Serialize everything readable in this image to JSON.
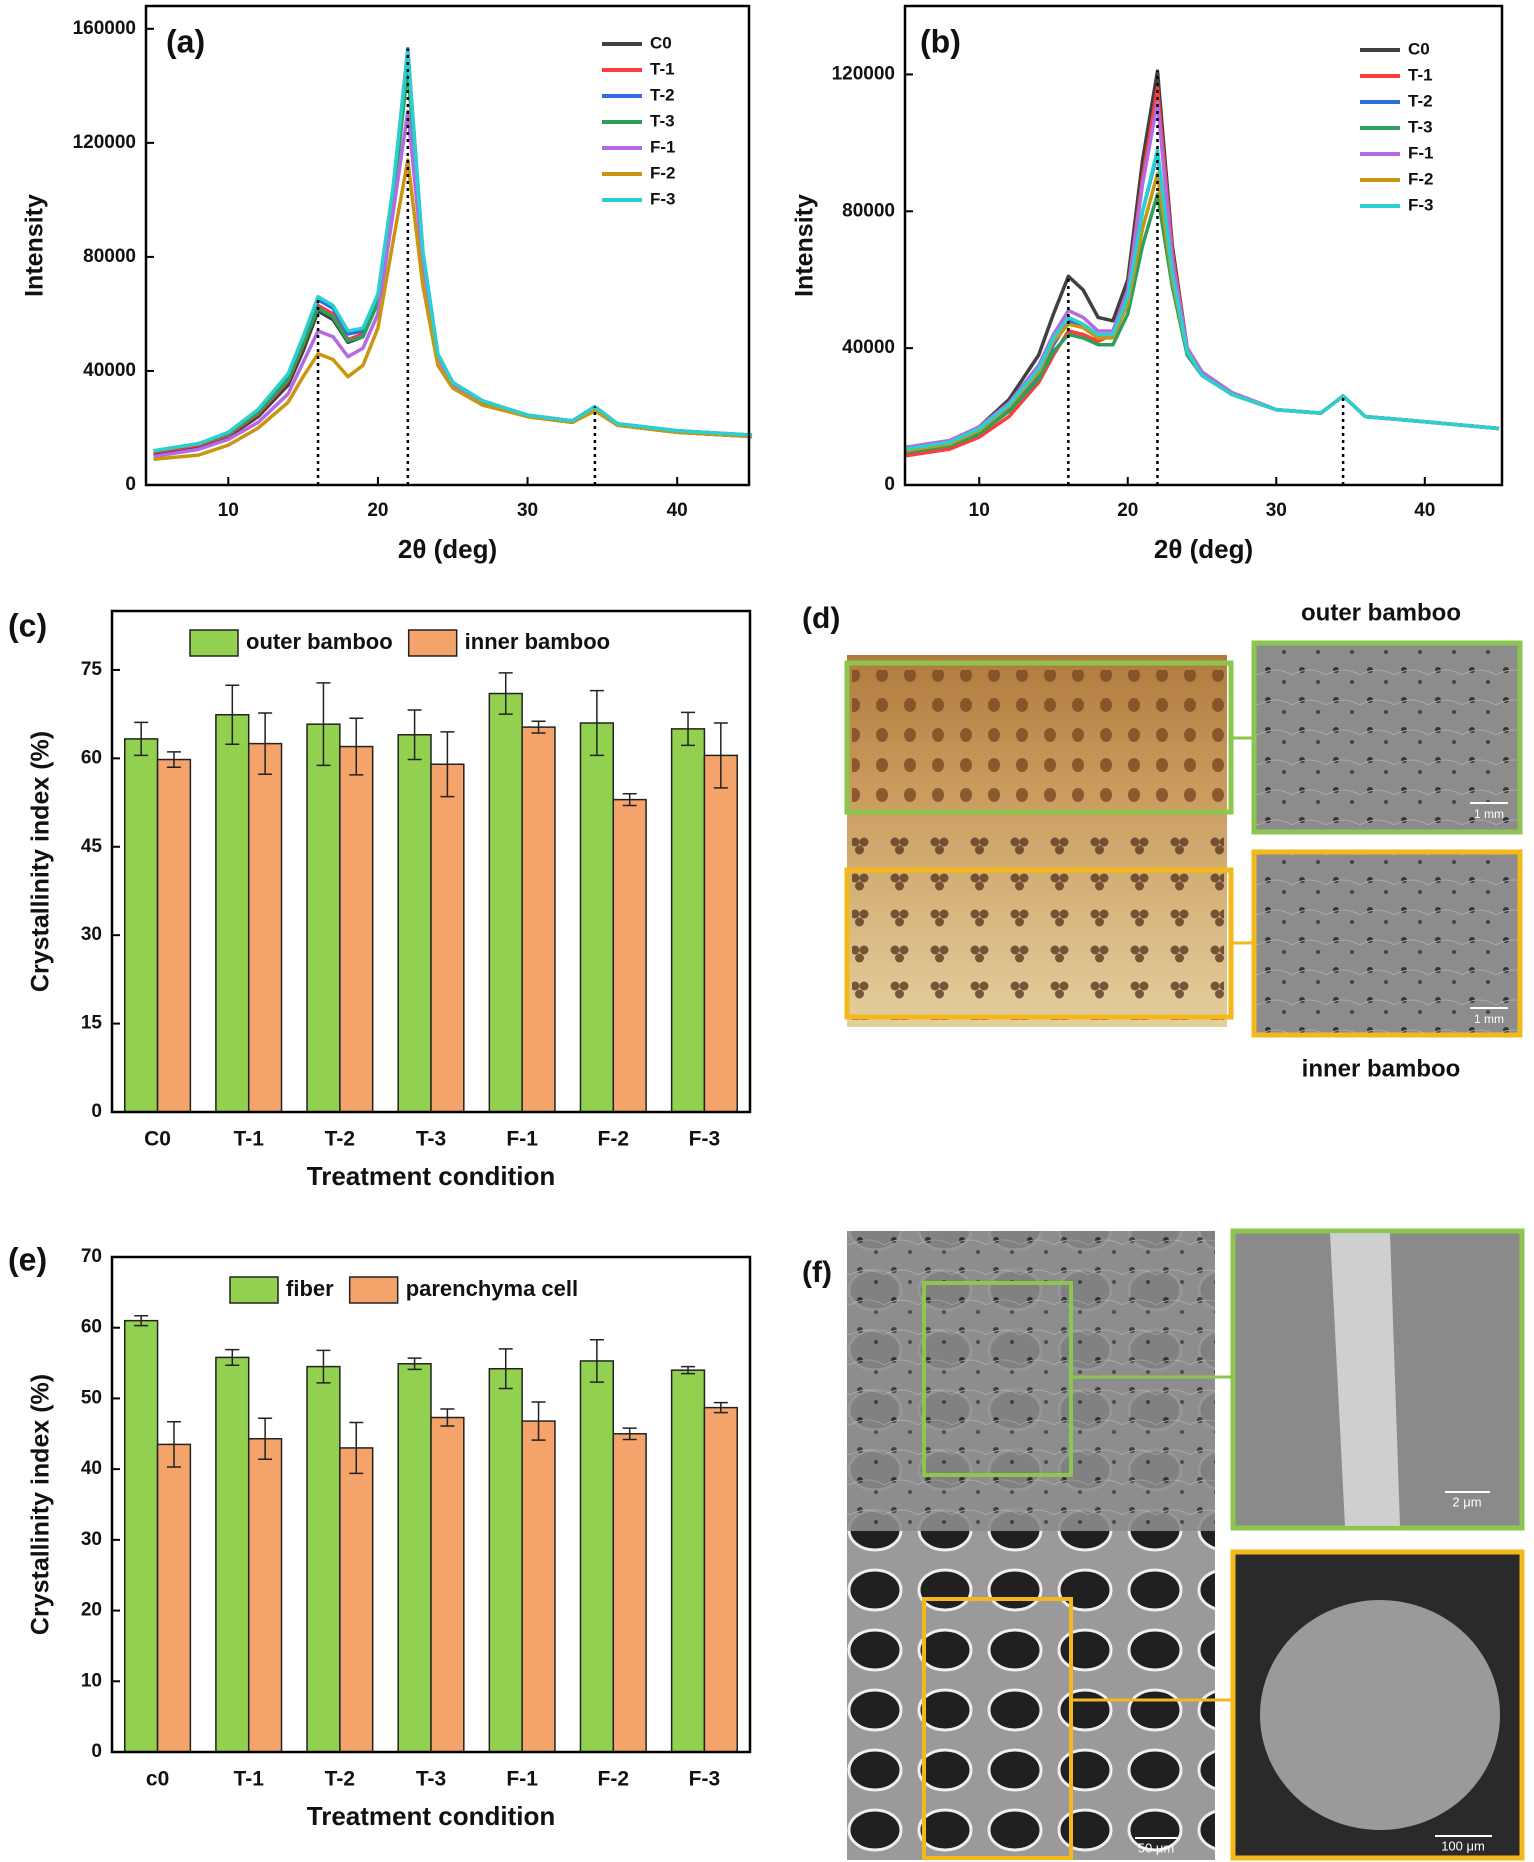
{
  "chart_data": [
    {
      "type": "line",
      "label": "(a)",
      "x_label": "2θ (deg)",
      "y_label": "Intensity",
      "legend": "upper right",
      "x": [
        5,
        8,
        10,
        12,
        14,
        15,
        16,
        17,
        18,
        19,
        20,
        21,
        22,
        23,
        24,
        25,
        27,
        30,
        33,
        34.5,
        36,
        40,
        45
      ],
      "xlim": [
        4.5,
        44.8
      ],
      "xticks": [
        10,
        20,
        30,
        40
      ],
      "ylim": [
        0,
        168000
      ],
      "yticks": [
        0,
        40000,
        80000,
        120000,
        160000
      ],
      "ref_lines": [
        16,
        22,
        34.5
      ],
      "series": [
        {
          "name": "C0",
          "color": "#404040",
          "values": [
            11000,
            13500,
            17000,
            24000,
            35000,
            47000,
            61000,
            58000,
            50000,
            52000,
            64000,
            100000,
            150000,
            80000,
            45000,
            35000,
            29000,
            24000,
            22000,
            27000,
            21000,
            18500,
            17000
          ]
        },
        {
          "name": "T-1",
          "color": "#ff3b3b",
          "values": [
            11500,
            14000,
            17500,
            25000,
            36500,
            49000,
            63000,
            60000,
            51000,
            53000,
            65000,
            101000,
            148000,
            80000,
            45000,
            35000,
            29000,
            24000,
            22000,
            27000,
            21000,
            18500,
            17000
          ]
        },
        {
          "name": "T-2",
          "color": "#2a6fdb",
          "values": [
            12000,
            14500,
            18000,
            26000,
            38000,
            51000,
            65000,
            62000,
            53000,
            54000,
            66000,
            103000,
            153000,
            82000,
            46000,
            36000,
            29500,
            24500,
            22500,
            27500,
            21500,
            19000,
            17500
          ]
        },
        {
          "name": "T-3",
          "color": "#2ca05a",
          "values": [
            12000,
            14500,
            18000,
            25500,
            37000,
            49500,
            62000,
            59000,
            50500,
            52000,
            64000,
            99000,
            146000,
            79000,
            45000,
            35000,
            29000,
            24000,
            22000,
            27000,
            21000,
            18500,
            17000
          ]
        },
        {
          "name": "F-1",
          "color": "#b36ae2",
          "values": [
            10000,
            12500,
            16000,
            22000,
            32000,
            43000,
            54000,
            52000,
            45000,
            48000,
            60000,
            95000,
            131000,
            78000,
            45000,
            35000,
            29500,
            24500,
            22500,
            27500,
            21500,
            19000,
            17500
          ]
        },
        {
          "name": "F-2",
          "color": "#c9960f",
          "values": [
            9000,
            10500,
            14000,
            20000,
            29000,
            38000,
            46000,
            44000,
            38000,
            42000,
            55000,
            85000,
            114000,
            70000,
            42000,
            34000,
            28000,
            24000,
            22000,
            26000,
            21000,
            18500,
            17000
          ]
        },
        {
          "name": "F-3",
          "color": "#2ad0d0",
          "values": [
            12000,
            14500,
            18500,
            26500,
            39000,
            52000,
            66000,
            63000,
            54000,
            55000,
            67000,
            104000,
            152000,
            82000,
            46000,
            36000,
            29500,
            24500,
            22500,
            27500,
            21500,
            19000,
            17500
          ]
        }
      ]
    },
    {
      "type": "line",
      "label": "(b)",
      "x_label": "2θ (deg)",
      "y_label": "Intensity",
      "legend": "upper right",
      "x": [
        5,
        8,
        10,
        12,
        14,
        15,
        16,
        17,
        18,
        19,
        20,
        21,
        22,
        23,
        24,
        25,
        27,
        30,
        33,
        34.5,
        36,
        40,
        45
      ],
      "xlim": [
        5,
        45.2
      ],
      "xticks": [
        10,
        20,
        30,
        40
      ],
      "ylim": [
        0,
        140000
      ],
      "yticks": [
        0,
        40000,
        80000,
        120000
      ],
      "ref_lines": [
        16,
        22,
        34.5
      ],
      "series": [
        {
          "name": "C0",
          "color": "#404040",
          "values": [
            10000,
            12500,
            17000,
            25000,
            38000,
            50000,
            61000,
            57000,
            49000,
            48000,
            60000,
            95000,
            121000,
            70000,
            40000,
            33000,
            27000,
            22000,
            21000,
            26000,
            20000,
            18500,
            16500
          ]
        },
        {
          "name": "T-1",
          "color": "#ff3b3b",
          "values": [
            8500,
            10500,
            14000,
            20000,
            30000,
            38000,
            45000,
            44000,
            42000,
            44000,
            57000,
            90000,
            116000,
            68000,
            40000,
            33000,
            27000,
            22000,
            21000,
            26000,
            20000,
            18500,
            16500
          ]
        },
        {
          "name": "T-2",
          "color": "#2a6fdb",
          "values": [
            9500,
            11500,
            15000,
            22000,
            32000,
            41000,
            48000,
            46000,
            43000,
            44000,
            55000,
            80000,
            97000,
            62000,
            39000,
            32000,
            26500,
            22000,
            21000,
            26000,
            20000,
            18500,
            16500
          ]
        },
        {
          "name": "T-3",
          "color": "#2ca05a",
          "values": [
            9500,
            11500,
            15000,
            21500,
            31000,
            39000,
            44000,
            43000,
            41000,
            41000,
            50000,
            70000,
            85000,
            58000,
            38000,
            32000,
            26500,
            22000,
            21000,
            26000,
            20000,
            18500,
            16500
          ]
        },
        {
          "name": "F-1",
          "color": "#b36ae2",
          "values": [
            11000,
            13000,
            17000,
            24000,
            35000,
            44000,
            51000,
            49000,
            45000,
            45000,
            57000,
            88000,
            112000,
            66000,
            40000,
            33000,
            27000,
            22000,
            21000,
            26000,
            20000,
            18500,
            16500
          ]
        },
        {
          "name": "F-2",
          "color": "#c9960f",
          "values": [
            10000,
            12000,
            16000,
            23000,
            33000,
            42000,
            47000,
            46000,
            43000,
            43000,
            53000,
            75000,
            91000,
            60000,
            39000,
            32000,
            26500,
            22000,
            21000,
            26000,
            20000,
            18500,
            16500
          ]
        },
        {
          "name": "F-3",
          "color": "#2ad0d0",
          "values": [
            10500,
            12500,
            16500,
            23500,
            34000,
            43000,
            49000,
            47000,
            44000,
            44000,
            55000,
            80000,
            98000,
            62000,
            39000,
            32000,
            26500,
            22000,
            21000,
            26000,
            20000,
            18500,
            16500
          ]
        }
      ]
    },
    {
      "type": "bar",
      "label": "(c)",
      "x_label": "Treatment condition",
      "y_label": "Crystallinity index (%)",
      "legend": "upper center",
      "categories": [
        "C0",
        "T-1",
        "T-2",
        "T-3",
        "F-1",
        "F-2",
        "F-3"
      ],
      "ylim": [
        0,
        85
      ],
      "yticks": [
        0,
        15,
        30,
        45,
        60,
        75
      ],
      "series": [
        {
          "name": "outer bamboo",
          "color": "#92d050",
          "values": [
            63.3,
            67.4,
            65.8,
            64.0,
            71.0,
            66.0,
            65.0
          ],
          "errors": [
            2.8,
            5.0,
            7.0,
            4.2,
            3.5,
            5.5,
            2.8
          ]
        },
        {
          "name": "inner bamboo",
          "color": "#f4a46a",
          "values": [
            59.8,
            62.5,
            62.0,
            59.0,
            65.3,
            53.0,
            60.5
          ],
          "errors": [
            1.3,
            5.2,
            4.8,
            5.5,
            1.0,
            1.0,
            5.5
          ]
        }
      ]
    },
    {
      "type": "bar",
      "label": "(e)",
      "x_label": "Treatment condition",
      "y_label": "Crystallinity index (%)",
      "legend": "upper center",
      "categories": [
        "c0",
        "T-1",
        "T-2",
        "T-3",
        "F-1",
        "F-2",
        "F-3"
      ],
      "ylim": [
        0,
        70
      ],
      "yticks": [
        0,
        10,
        20,
        30,
        40,
        50,
        60,
        70
      ],
      "series": [
        {
          "name": "fiber",
          "color": "#92d050",
          "values": [
            61.0,
            55.8,
            54.5,
            54.9,
            54.2,
            55.3,
            54.0
          ],
          "errors": [
            0.7,
            1.1,
            2.3,
            0.8,
            2.8,
            3.0,
            0.5
          ]
        },
        {
          "name": "parenchyma cell",
          "color": "#f4a46a",
          "values": [
            43.5,
            44.3,
            43.0,
            47.3,
            46.8,
            45.0,
            48.7
          ],
          "errors": [
            3.2,
            2.9,
            3.6,
            1.2,
            2.7,
            0.8,
            0.7
          ]
        }
      ]
    }
  ],
  "panels": [
    {
      "label": "(d)",
      "captions": [
        "outer bamboo",
        "inner bamboo"
      ],
      "scale_bars": [
        "1 mm",
        "1 mm"
      ]
    },
    {
      "label": "(f)",
      "scale_bars": [
        "50 μm",
        "2 μm",
        "100 μm"
      ]
    }
  ]
}
